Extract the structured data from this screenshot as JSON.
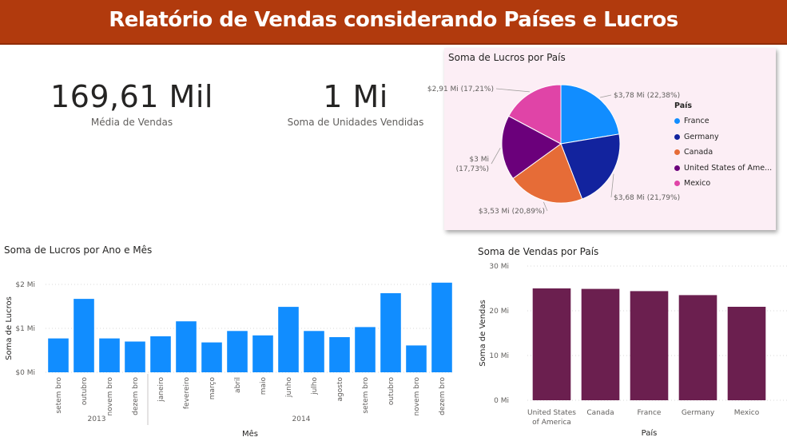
{
  "header": {
    "title": "Relatório de Vendas considerando Países e Lucros"
  },
  "kpis": [
    {
      "value": "169,61 Mil",
      "label": "Média de Vendas"
    },
    {
      "value": "1 Mi",
      "label": "Soma de Unidades Vendidas"
    }
  ],
  "colors": {
    "header": "#b13a0d",
    "blue_bar": "#118dff",
    "purple_bar": "#6b1f4f",
    "pie_card_bg": "#fceef5"
  },
  "chart_data": [
    {
      "type": "pie",
      "title": "Soma de Lucros por País",
      "legend_title": "País",
      "legend_position": "right",
      "slices": [
        {
          "name": "France",
          "value": 3.78,
          "label": "$3,78 Mi (22,38%)",
          "color": "#118dff"
        },
        {
          "name": "Germany",
          "value": 3.68,
          "label": "$3,68 Mi (21,79%)",
          "color": "#12239e"
        },
        {
          "name": "Canada",
          "value": 3.53,
          "label": "$3,53 Mi (20,89%)",
          "color": "#e66c37"
        },
        {
          "name": "United States of America",
          "legend_label": "United States of Ame...",
          "value": 3.0,
          "label": "$3 Mi (17,73%)",
          "color": "#6b007b"
        },
        {
          "name": "Mexico",
          "value": 2.91,
          "label": "$2,91 Mi (17,21%)",
          "color": "#e044a7"
        }
      ]
    },
    {
      "type": "bar",
      "title": "Soma de Lucros por Ano e Mês",
      "xlabel": "Mês",
      "ylabel": "Soma de Lucros",
      "ylim": [
        0,
        2
      ],
      "yticks": [
        {
          "value": 0,
          "label": "$0 Mi"
        },
        {
          "value": 1,
          "label": "$1 Mi"
        },
        {
          "value": 2,
          "label": "$2 Mi"
        }
      ],
      "grid": true,
      "categories": [
        "setembro",
        "outubro",
        "novembro",
        "dezembro",
        "janeiro",
        "fevereiro",
        "março",
        "abril",
        "maio",
        "junho",
        "julho",
        "agosto",
        "setembro",
        "outubro",
        "novembro",
        "dezembro"
      ],
      "tick_labels": [
        "setem bro",
        "outubro",
        "novem bro",
        "dezem bro",
        "janeiro",
        "fevereiro",
        "março",
        "abril",
        "maio",
        "junho",
        "julho",
        "agosto",
        "setem bro",
        "outubro",
        "novem bro",
        "dezem bro"
      ],
      "groups": [
        {
          "label": "2013",
          "count": 4
        },
        {
          "label": "2014",
          "count": 12
        }
      ],
      "values": [
        0.77,
        1.67,
        0.77,
        0.7,
        0.82,
        1.16,
        0.68,
        0.94,
        0.84,
        1.49,
        0.94,
        0.8,
        1.03,
        1.8,
        0.61,
        2.04
      ],
      "color": "#118dff"
    },
    {
      "type": "bar",
      "title": "Soma de Vendas por País",
      "xlabel": "País",
      "ylabel": "Soma de Vendas",
      "ylim": [
        0,
        30
      ],
      "yticks": [
        {
          "value": 0,
          "label": "0 Mi"
        },
        {
          "value": 10,
          "label": "10 Mi"
        },
        {
          "value": 20,
          "label": "20 Mi"
        },
        {
          "value": 30,
          "label": "30 Mi"
        }
      ],
      "grid": true,
      "categories": [
        "United States of America",
        "Canada",
        "France",
        "Germany",
        "Mexico"
      ],
      "tick_labels": [
        [
          "United States",
          "of America"
        ],
        [
          "Canada"
        ],
        [
          "France"
        ],
        [
          "Germany"
        ],
        [
          "Mexico"
        ]
      ],
      "values": [
        25.0,
        24.9,
        24.4,
        23.5,
        20.9
      ],
      "color": "#6b1f4f"
    }
  ]
}
